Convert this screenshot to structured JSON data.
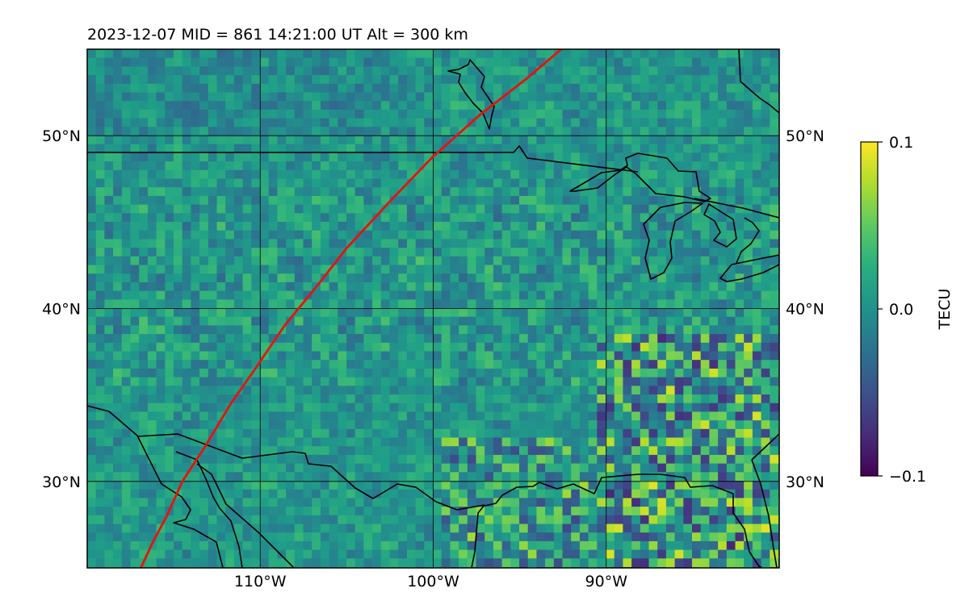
{
  "title": "2023-12-07  MID = 861    14:21:00  UT  Alt = 300 km",
  "map": {
    "lon_range": [
      -120,
      -80
    ],
    "lat_range": [
      25,
      55
    ],
    "lat_ticks": [
      {
        "value": 50,
        "label": "50°N"
      },
      {
        "value": 40,
        "label": "40°N"
      },
      {
        "value": 30,
        "label": "30°N"
      }
    ],
    "lon_ticks": [
      {
        "value": -110,
        "label": "110°W"
      },
      {
        "value": -100,
        "label": "100°W"
      },
      {
        "value": -90,
        "label": "90°W"
      }
    ],
    "gridlines": true,
    "track_color": "#e8120c",
    "coastline_color": "#000000",
    "track": [
      [
        -116.9,
        25
      ],
      [
        -116.2,
        26.5
      ],
      [
        -115.4,
        28
      ],
      [
        -114.5,
        30
      ],
      [
        -113.2,
        32
      ],
      [
        -111.7,
        34.5
      ],
      [
        -110.3,
        36.5
      ],
      [
        -108.6,
        39
      ],
      [
        -106.8,
        41.2
      ],
      [
        -105.0,
        43.5
      ],
      [
        -102.5,
        46.2
      ],
      [
        -100.0,
        48.8
      ],
      [
        -97.3,
        51.2
      ],
      [
        -94.6,
        53.3
      ],
      [
        -92.6,
        55
      ]
    ]
  },
  "colorbar": {
    "label": "TECU",
    "min": -0.1,
    "max": 0.1,
    "ticks": [
      "0.1",
      "0.0",
      "−0.1"
    ],
    "colormap": "viridis"
  }
}
